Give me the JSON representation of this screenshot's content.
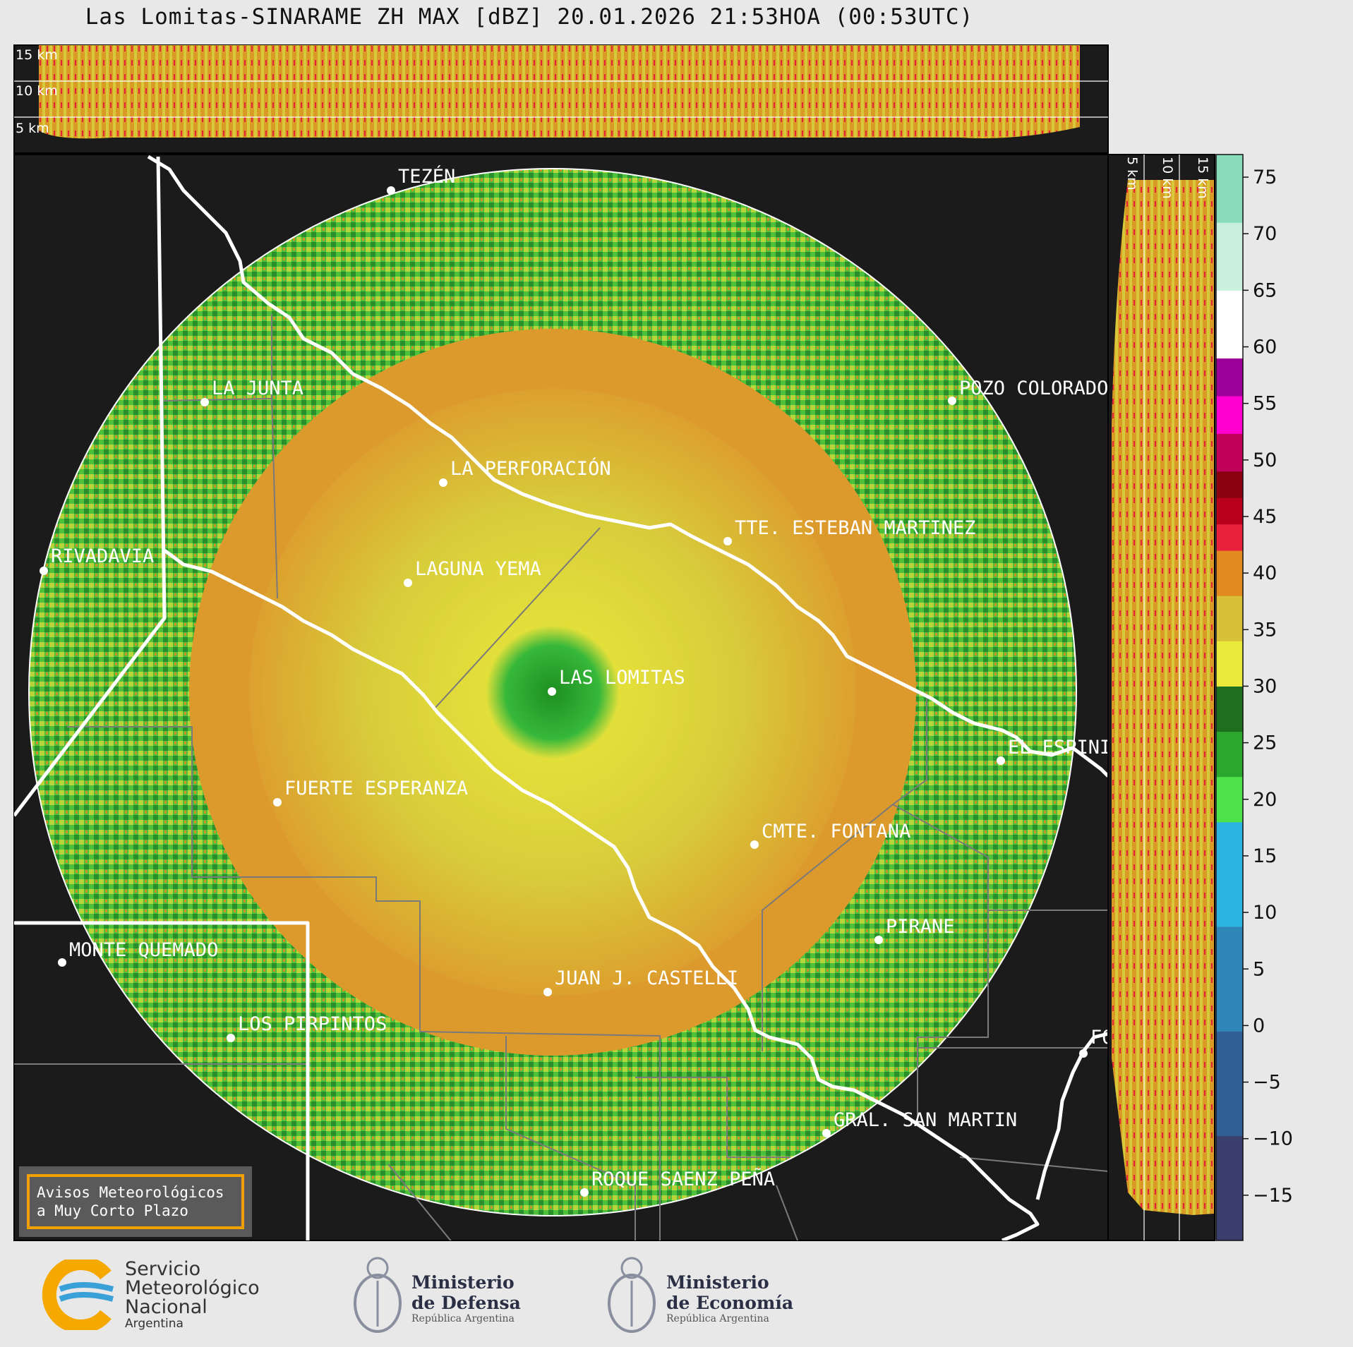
{
  "title": "Las Lomitas-SINARAME ZH MAX [dBZ] 20.01.2026 21:53HOA (00:53UTC)",
  "top_panel": {
    "height_labels": [
      "15 km",
      "10 km",
      "5 km"
    ]
  },
  "side_panel": {
    "height_labels": [
      "5 km",
      "10 km",
      "15 km"
    ]
  },
  "colorbar": {
    "ticks": [
      75,
      70,
      65,
      60,
      55,
      50,
      45,
      40,
      35,
      30,
      25,
      20,
      15,
      10,
      5,
      0,
      -5,
      -10,
      -15
    ],
    "tick_labels": [
      "75",
      "70",
      "65",
      "60",
      "55",
      "50",
      "45",
      "40",
      "35",
      "30",
      "25",
      "20",
      "15",
      "10",
      "5",
      "0",
      "−5",
      "−10",
      "−15"
    ],
    "range": [
      -19,
      77
    ],
    "bands": [
      {
        "from": -19,
        "to": 18,
        "colors": [
          "#3b3f6e",
          "#2f5f94",
          "#2f86b9",
          "#2db3df"
        ]
      },
      {
        "from": 18,
        "to": 30,
        "colors": [
          "#4ee34a",
          "#2aa82d",
          "#1e6e1f"
        ]
      },
      {
        "from": 30,
        "to": 42,
        "colors": [
          "#eaea3a",
          "#d8c039",
          "#e08a1f"
        ]
      },
      {
        "from": 42,
        "to": 49,
        "colors": [
          "#e8203a",
          "#b8001a",
          "#8a0010"
        ]
      },
      {
        "from": 49,
        "to": 59,
        "colors": [
          "#c0005a",
          "#ff00d0",
          "#9b0099"
        ]
      },
      {
        "from": 59,
        "to": 77,
        "colors": [
          "#ffffff",
          "#c9f0df",
          "#88dcbc"
        ]
      }
    ]
  },
  "map": {
    "radar_site": "LAS LOMITAS",
    "cities": [
      {
        "name": "TEZÉN"
      },
      {
        "name": "LA JUNTA"
      },
      {
        "name": "POZO COLORADO"
      },
      {
        "name": "LA PERFORACIÓN"
      },
      {
        "name": "TTE. ESTEBAN MARTINEZ"
      },
      {
        "name": "RIVADAVIA"
      },
      {
        "name": "LAGUNA YEMA"
      },
      {
        "name": "LAS LOMITAS"
      },
      {
        "name": "EL ESPINILLO"
      },
      {
        "name": "FUERTE ESPERANZA"
      },
      {
        "name": "CMTE. FONTANA"
      },
      {
        "name": "PIRANE"
      },
      {
        "name": "MONTE QUEMADO"
      },
      {
        "name": "JUAN J. CASTELLI"
      },
      {
        "name": "LOS PIRPINTOS"
      },
      {
        "name": "GRAL. SAN MARTIN"
      },
      {
        "name": "ROQUE SAENZ PEÑA"
      },
      {
        "name": "FORMOSA"
      }
    ]
  },
  "notice_box": {
    "line1": "Avisos Meteorológicos",
    "line2": "a Muy Corto Plazo"
  },
  "footer": {
    "smn_line1": "Servicio",
    "smn_line2": "Meteorológico",
    "smn_line3": "Nacional",
    "smn_line4": "Argentina",
    "defensa_line1": "Ministerio",
    "defensa_line2": "de Defensa",
    "defensa_line3": "República Argentina",
    "economia_line1": "Ministerio",
    "economia_line2": "de Economía",
    "economia_line3": "República Argentina"
  },
  "colors": {
    "background": "#1b1b1b",
    "border_line": "#ffffff",
    "dept_line": "#808080",
    "accent_box": "#f0a000"
  }
}
